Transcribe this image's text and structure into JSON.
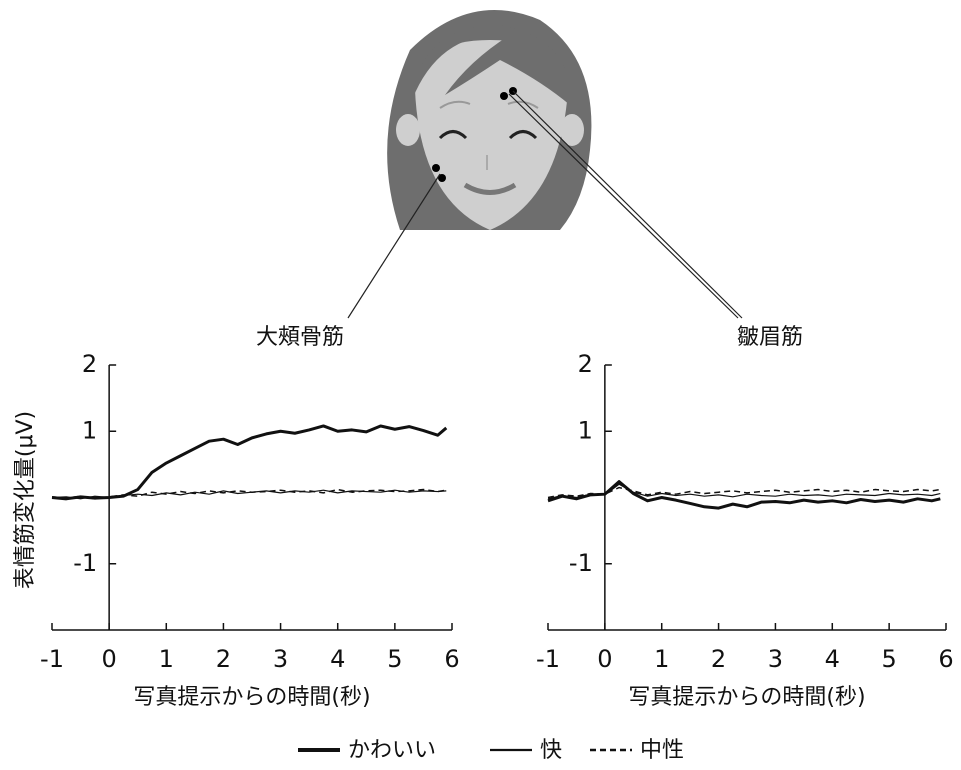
{
  "chart_data": [
    {
      "type": "line",
      "title": "大頰骨筋",
      "x_label": "写真提示からの時間(秒)",
      "y_label": "表情筋変化量(μV)",
      "x": [
        -1,
        -0.75,
        -0.5,
        -0.25,
        0,
        0.25,
        0.5,
        0.75,
        1,
        1.25,
        1.5,
        1.75,
        2,
        2.25,
        2.5,
        2.75,
        3,
        3.25,
        3.5,
        3.75,
        4,
        4.25,
        4.5,
        4.75,
        5,
        5.25,
        5.5,
        5.75,
        5.9
      ],
      "series": [
        {
          "name": "かわいい",
          "color": "#111111",
          "style": "bold",
          "values": [
            0,
            -0.02,
            0.01,
            -0.01,
            0,
            0.02,
            0.12,
            0.38,
            0.52,
            0.63,
            0.74,
            0.85,
            0.88,
            0.8,
            0.9,
            0.96,
            1.0,
            0.97,
            1.02,
            1.08,
            1.0,
            1.02,
            0.99,
            1.08,
            1.03,
            1.07,
            1.01,
            0.94,
            1.05
          ]
        },
        {
          "name": "快",
          "color": "#111111",
          "style": "solid",
          "values": [
            0,
            0.01,
            -0.02,
            0.02,
            0,
            0.03,
            0.05,
            0.03,
            0.07,
            0.04,
            0.08,
            0.05,
            0.1,
            0.06,
            0.08,
            0.1,
            0.07,
            0.1,
            0.08,
            0.11,
            0.07,
            0.1,
            0.09,
            0.08,
            0.11,
            0.08,
            0.1,
            0.09,
            0.1
          ]
        },
        {
          "name": "中性",
          "color": "#111111",
          "style": "dashed",
          "values": [
            0.01,
            -0.01,
            0.02,
            -0.02,
            0.01,
            0.04,
            0.02,
            0.08,
            0.05,
            0.09,
            0.06,
            0.1,
            0.07,
            0.1,
            0.08,
            0.09,
            0.11,
            0.08,
            0.1,
            0.07,
            0.12,
            0.08,
            0.1,
            0.11,
            0.09,
            0.1,
            0.12,
            0.09,
            0.11
          ]
        }
      ],
      "xlim": [
        -1,
        6
      ],
      "xticks": [
        -1,
        0,
        1,
        2,
        3,
        4,
        5,
        6
      ],
      "ylim": [
        -2,
        2
      ],
      "yticks": [
        -1,
        1,
        2
      ]
    },
    {
      "type": "line",
      "title": "皺眉筋",
      "x_label": "写真提示からの時間(秒)",
      "x": [
        -1,
        -0.75,
        -0.5,
        -0.25,
        0,
        0.25,
        0.5,
        0.75,
        1,
        1.25,
        1.5,
        1.75,
        2,
        2.25,
        2.5,
        2.75,
        3,
        3.25,
        3.5,
        3.75,
        4,
        4.25,
        4.5,
        4.75,
        5,
        5.25,
        5.5,
        5.75,
        5.9
      ],
      "series": [
        {
          "color": "#111111",
          "style": "bold",
          "values": [
            -0.05,
            0.02,
            -0.02,
            0.04,
            0.05,
            0.24,
            0.06,
            -0.05,
            0.0,
            -0.04,
            -0.09,
            -0.14,
            -0.16,
            -0.1,
            -0.14,
            -0.07,
            -0.06,
            -0.08,
            -0.04,
            -0.07,
            -0.05,
            -0.08,
            -0.03,
            -0.06,
            -0.04,
            -0.07,
            -0.02,
            -0.05,
            -0.02
          ]
        },
        {
          "color": "#111111",
          "style": "solid",
          "values": [
            -0.02,
            0.03,
            0.0,
            0.05,
            0.04,
            0.2,
            0.08,
            0.02,
            0.06,
            0.03,
            0.05,
            0.02,
            0.04,
            0.01,
            0.05,
            0.03,
            0.02,
            0.05,
            0.03,
            0.04,
            0.02,
            0.05,
            0.04,
            0.03,
            0.06,
            0.04,
            0.05,
            0.03,
            0.06
          ]
        },
        {
          "color": "#111111",
          "style": "dashed",
          "values": [
            0.0,
            0.04,
            0.02,
            0.06,
            0.05,
            0.15,
            0.1,
            0.04,
            0.08,
            0.05,
            0.09,
            0.06,
            0.08,
            0.1,
            0.07,
            0.09,
            0.11,
            0.08,
            0.1,
            0.12,
            0.09,
            0.11,
            0.08,
            0.12,
            0.1,
            0.09,
            0.12,
            0.1,
            0.12
          ]
        }
      ],
      "xlim": [
        -1,
        6
      ],
      "xticks": [
        -1,
        0,
        1,
        2,
        3,
        4,
        5,
        6
      ],
      "ylim": [
        -2,
        2
      ],
      "yticks": [
        -1,
        1,
        2
      ]
    }
  ]
}
